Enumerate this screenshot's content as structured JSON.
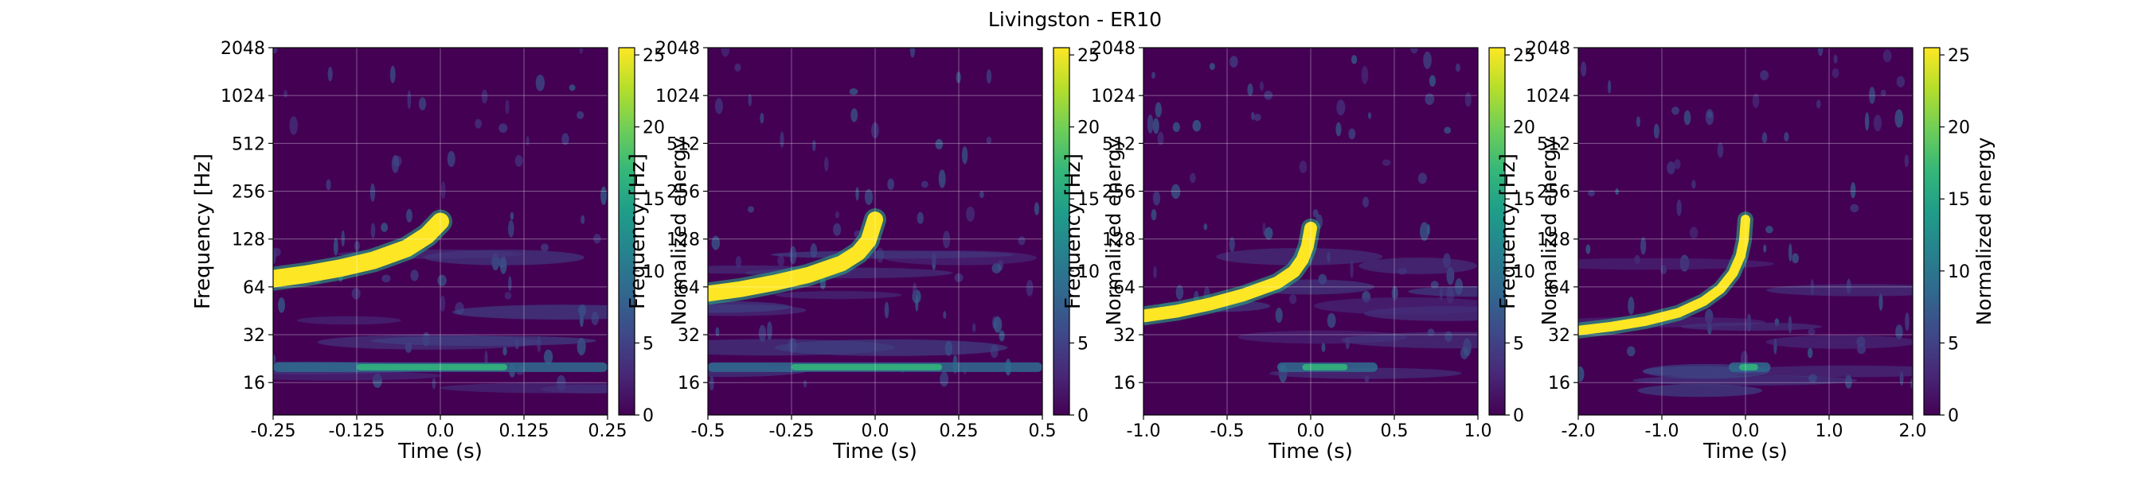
{
  "figure": {
    "title": "Livingston - ER10"
  },
  "colors": {
    "colormap": [
      "#440154",
      "#482878",
      "#3e4989",
      "#31688e",
      "#26828e",
      "#1f9e89",
      "#35b779",
      "#6ece58",
      "#b5de2b",
      "#fde725"
    ]
  },
  "chart_data": [
    {
      "type": "heatmap",
      "title": "",
      "xlabel": "Time (s)",
      "ylabel": "Frequency [Hz]",
      "xlim": [
        -0.25,
        0.25
      ],
      "ylim": [
        10,
        2048
      ],
      "yscale": "log",
      "grid": true,
      "x_ticks": [
        -0.25,
        -0.125,
        0.0,
        0.125,
        0.25
      ],
      "x_tick_labels": [
        "-0.25",
        "-0.125",
        "0.0",
        "0.125",
        "0.25"
      ],
      "y_ticks": [
        16,
        32,
        64,
        128,
        256,
        512,
        1024,
        2048
      ],
      "y_tick_labels": [
        "16",
        "32",
        "64",
        "128",
        "256",
        "512",
        "1024",
        "2048"
      ],
      "colorbar": {
        "label": "Normalized energy",
        "range": [
          0,
          25.5
        ],
        "ticks": [
          0,
          5,
          10,
          15,
          20,
          25
        ],
        "tick_labels": [
          "0",
          "5",
          "10",
          "15",
          "20",
          "25"
        ]
      },
      "chirp_track": [
        [
          -0.25,
          72
        ],
        [
          -0.2,
          77
        ],
        [
          -0.15,
          84
        ],
        [
          -0.1,
          94
        ],
        [
          -0.05,
          112
        ],
        [
          -0.02,
          135
        ],
        [
          0.0,
          165
        ]
      ],
      "line_feature": {
        "frequency": 20,
        "time_range": [
          -0.25,
          0.25
        ]
      }
    },
    {
      "type": "heatmap",
      "title": "",
      "xlabel": "Time (s)",
      "ylabel": "Frequency [Hz]",
      "xlim": [
        -0.5,
        0.5
      ],
      "ylim": [
        10,
        2048
      ],
      "yscale": "log",
      "grid": true,
      "x_ticks": [
        -0.5,
        -0.25,
        0.0,
        0.25,
        0.5
      ],
      "x_tick_labels": [
        "-0.5",
        "-0.25",
        "0.0",
        "0.25",
        "0.5"
      ],
      "y_ticks": [
        16,
        32,
        64,
        128,
        256,
        512,
        1024,
        2048
      ],
      "y_tick_labels": [
        "16",
        "32",
        "64",
        "128",
        "256",
        "512",
        "1024",
        "2048"
      ],
      "colorbar": {
        "label": "Normalized energy",
        "range": [
          0,
          25.5
        ],
        "ticks": [
          0,
          5,
          10,
          15,
          20,
          25
        ],
        "tick_labels": [
          "0",
          "5",
          "10",
          "15",
          "20",
          "25"
        ]
      },
      "chirp_track": [
        [
          -0.5,
          58
        ],
        [
          -0.4,
          62
        ],
        [
          -0.3,
          68
        ],
        [
          -0.2,
          76
        ],
        [
          -0.1,
          90
        ],
        [
          -0.05,
          105
        ],
        [
          -0.02,
          125
        ],
        [
          0.0,
          170
        ]
      ],
      "line_feature": {
        "frequency": 20,
        "time_range": [
          -0.5,
          0.5
        ]
      }
    },
    {
      "type": "heatmap",
      "title": "",
      "xlabel": "Time (s)",
      "ylabel": "Frequency [Hz]",
      "xlim": [
        -1.0,
        1.0
      ],
      "ylim": [
        10,
        2048
      ],
      "yscale": "log",
      "grid": true,
      "x_ticks": [
        -1.0,
        -0.5,
        0.0,
        0.5,
        1.0
      ],
      "x_tick_labels": [
        "-1.0",
        "-0.5",
        "0.0",
        "0.5",
        "1.0"
      ],
      "y_ticks": [
        16,
        32,
        64,
        128,
        256,
        512,
        1024,
        2048
      ],
      "y_tick_labels": [
        "16",
        "32",
        "64",
        "128",
        "256",
        "512",
        "1024",
        "2048"
      ],
      "colorbar": {
        "label": "Normalized energy",
        "range": [
          0,
          25.5
        ],
        "ticks": [
          0,
          5,
          10,
          15,
          20,
          25
        ],
        "tick_labels": [
          "0",
          "5",
          "10",
          "15",
          "20",
          "25"
        ]
      },
      "chirp_track": [
        [
          -1.0,
          42
        ],
        [
          -0.8,
          45
        ],
        [
          -0.6,
          50
        ],
        [
          -0.4,
          57
        ],
        [
          -0.2,
          68
        ],
        [
          -0.1,
          80
        ],
        [
          -0.05,
          95
        ],
        [
          -0.02,
          115
        ],
        [
          0.0,
          150
        ]
      ],
      "line_feature": {
        "frequency": 20,
        "time_range": [
          -0.2,
          0.4
        ]
      }
    },
    {
      "type": "heatmap",
      "title": "",
      "xlabel": "Time (s)",
      "ylabel": "Frequency [Hz]",
      "xlim": [
        -2.0,
        2.0
      ],
      "ylim": [
        10,
        2048
      ],
      "yscale": "log",
      "grid": true,
      "x_ticks": [
        -2.0,
        -1.0,
        0.0,
        1.0,
        2.0
      ],
      "x_tick_labels": [
        "-2.0",
        "-1.0",
        "0.0",
        "1.0",
        "2.0"
      ],
      "y_ticks": [
        16,
        32,
        64,
        128,
        256,
        512,
        1024,
        2048
      ],
      "y_tick_labels": [
        "16",
        "32",
        "64",
        "128",
        "256",
        "512",
        "1024",
        "2048"
      ],
      "colorbar": {
        "label": "Normalized energy",
        "range": [
          0,
          25.5
        ],
        "ticks": [
          0,
          5,
          10,
          15,
          20,
          25
        ],
        "tick_labels": [
          "0",
          "5",
          "10",
          "15",
          "20",
          "25"
        ]
      },
      "chirp_track": [
        [
          -2.0,
          34
        ],
        [
          -1.6,
          36
        ],
        [
          -1.2,
          39
        ],
        [
          -0.8,
          44
        ],
        [
          -0.5,
          52
        ],
        [
          -0.3,
          62
        ],
        [
          -0.15,
          78
        ],
        [
          -0.06,
          100
        ],
        [
          -0.02,
          125
        ],
        [
          0.0,
          170
        ]
      ],
      "line_feature": {
        "frequency": 20,
        "time_range": [
          -0.2,
          0.3
        ]
      }
    }
  ]
}
